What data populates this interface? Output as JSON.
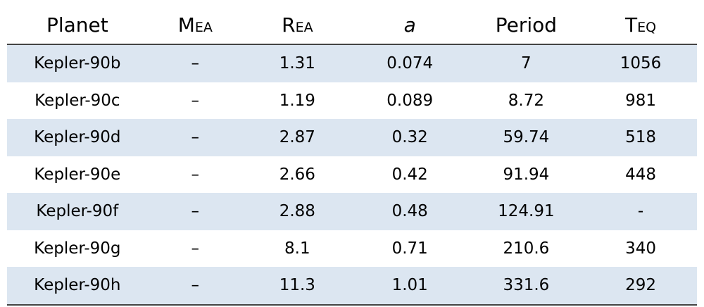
{
  "table": {
    "header": [
      "Planet",
      {
        "text": "M",
        "sub": "EA"
      },
      {
        "text": "R",
        "sub": "EA"
      },
      "a",
      "Period",
      {
        "text": "T",
        "sub": "EQ"
      }
    ],
    "rows": [
      [
        "Kepler-90b",
        "–",
        "1.31",
        "0.074",
        "7",
        "1056"
      ],
      [
        "Kepler-90c",
        "–",
        "1.19",
        "0.089",
        "8.72",
        "981"
      ],
      [
        "Kepler-90d",
        "–",
        "2.87",
        "0.32",
        "59.74",
        "518"
      ],
      [
        "Kepler-90e",
        "–",
        "2.66",
        "0.42",
        "91.94",
        "448"
      ],
      [
        "Kepler-90f",
        "–",
        "2.88",
        "0.48",
        "124.91",
        "-"
      ],
      [
        "Kepler-90g",
        "–",
        "8.1",
        "0.71",
        "210.6",
        "340"
      ],
      [
        "Kepler-90h",
        "–",
        "11.3",
        "1.01",
        "331.6",
        "292"
      ]
    ]
  }
}
